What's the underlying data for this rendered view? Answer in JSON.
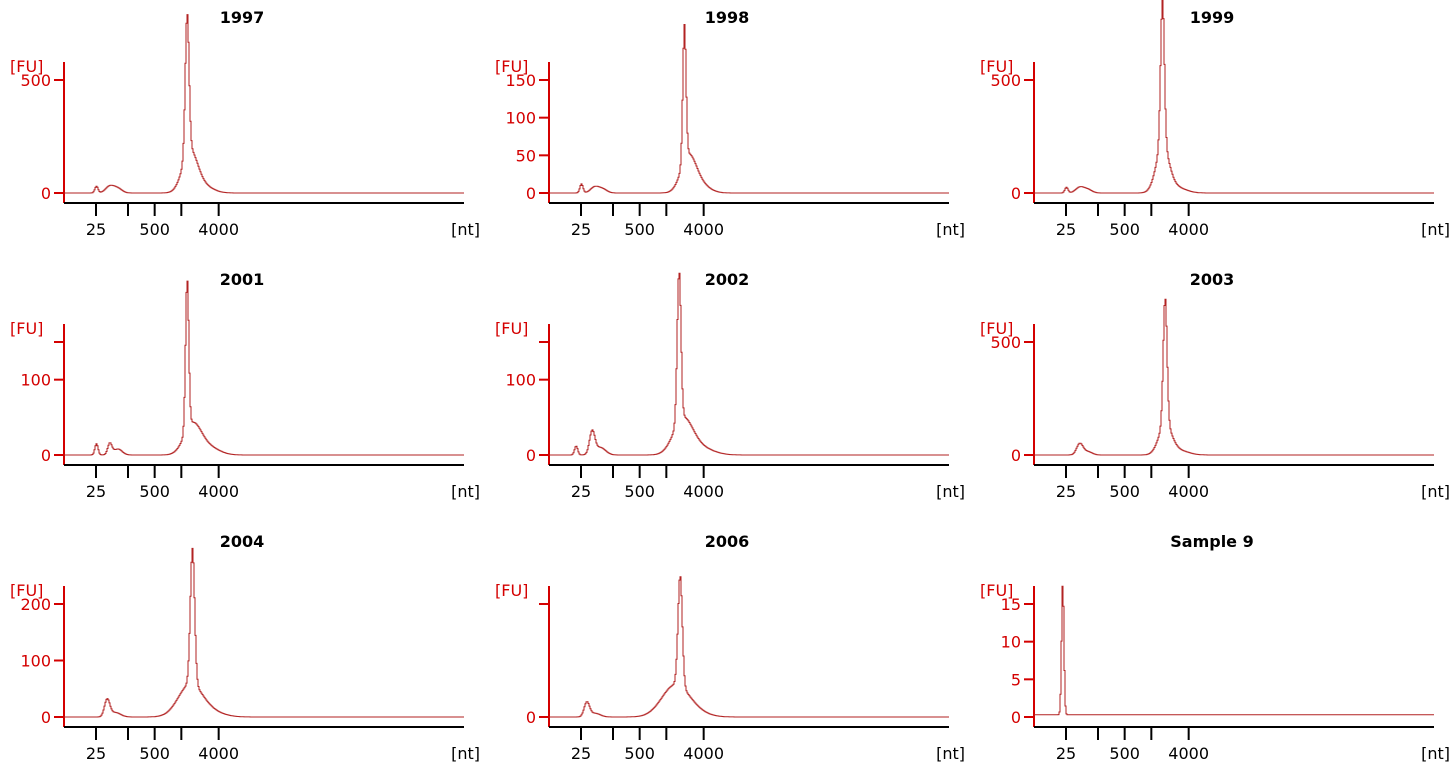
{
  "colors": {
    "axis_y": "#d40000",
    "axis_x": "#000000",
    "trace": "#b22222"
  },
  "chart_data": [
    {
      "type": "line",
      "title": "1997",
      "ylabel": "[FU]",
      "xlabel": "[nt]",
      "ylim": [
        -50,
        720
      ],
      "yticks": [
        0,
        500
      ],
      "ytick_labels": [
        "0",
        "500"
      ],
      "xlim": [
        20,
        95
      ],
      "xtick_values": [
        26,
        32,
        37,
        42,
        49
      ],
      "xtick_labels": [
        "25",
        "",
        "500",
        "",
        "4000"
      ],
      "peaks": [
        {
          "x": 26,
          "y": 30,
          "w": 0.3
        },
        {
          "x": 28.5,
          "y": 30,
          "w": 0.8
        },
        {
          "x": 30,
          "y": 20,
          "w": 0.8
        },
        {
          "x": 43,
          "y": 620,
          "w": 0.35
        },
        {
          "x": 43.5,
          "y": 180,
          "w": 1.4
        },
        {
          "x": 46,
          "y": 30,
          "w": 1.8
        }
      ]
    },
    {
      "type": "line",
      "title": "1998",
      "ylabel": "[FU]",
      "xlabel": "[nt]",
      "ylim": [
        -8,
        205
      ],
      "yticks": [
        0,
        50,
        100,
        150
      ],
      "ytick_labels": [
        "0",
        "50",
        "100",
        "150"
      ],
      "xlim": [
        20,
        95
      ],
      "xtick_values": [
        26,
        32,
        37,
        42,
        49
      ],
      "xtick_labels": [
        "25",
        "",
        "500",
        "",
        "4000"
      ],
      "peaks": [
        {
          "x": 26,
          "y": 12,
          "w": 0.3
        },
        {
          "x": 28.5,
          "y": 8,
          "w": 0.8
        },
        {
          "x": 30,
          "y": 5,
          "w": 0.8
        },
        {
          "x": 45.3,
          "y": 180,
          "w": 0.3
        },
        {
          "x": 46,
          "y": 45,
          "w": 1.4
        },
        {
          "x": 48,
          "y": 12,
          "w": 1.8
        }
      ]
    },
    {
      "type": "line",
      "title": "1999",
      "ylabel": "[FU]",
      "xlabel": "[nt]",
      "ylim": [
        -50,
        720
      ],
      "yticks": [
        0,
        500
      ],
      "ytick_labels": [
        "0",
        "500"
      ],
      "xlim": [
        20,
        95
      ],
      "xtick_values": [
        26,
        32,
        37,
        42,
        49
      ],
      "xtick_labels": [
        "25",
        "",
        "500",
        "",
        "4000"
      ],
      "peaks": [
        {
          "x": 26,
          "y": 25,
          "w": 0.3
        },
        {
          "x": 28.5,
          "y": 25,
          "w": 0.8
        },
        {
          "x": 30,
          "y": 15,
          "w": 0.8
        },
        {
          "x": 44,
          "y": 650,
          "w": 0.35
        },
        {
          "x": 44,
          "y": 200,
          "w": 1.2
        },
        {
          "x": 46.5,
          "y": 25,
          "w": 1.8
        }
      ]
    },
    {
      "type": "line",
      "title": "2001",
      "ylabel": "[FU]",
      "xlabel": "[nt]",
      "ylim": [
        -8,
        210
      ],
      "yticks": [
        0,
        100,
        150
      ],
      "ytick_labels": [
        "0",
        "100",
        ""
      ],
      "xlim": [
        20,
        95
      ],
      "xtick_values": [
        26,
        32,
        37,
        42,
        49
      ],
      "xtick_labels": [
        "25",
        "",
        "500",
        "",
        "4000"
      ],
      "peaks": [
        {
          "x": 26,
          "y": 15,
          "w": 0.3
        },
        {
          "x": 28.5,
          "y": 15,
          "w": 0.4
        },
        {
          "x": 30,
          "y": 8,
          "w": 0.8
        },
        {
          "x": 43,
          "y": 200,
          "w": 0.3
        },
        {
          "x": 44,
          "y": 40,
          "w": 1.6
        },
        {
          "x": 47,
          "y": 10,
          "w": 2.0
        }
      ]
    },
    {
      "type": "line",
      "title": "2002",
      "ylabel": "[FU]",
      "xlabel": "[nt]",
      "ylim": [
        -8,
        210
      ],
      "yticks": [
        0,
        100,
        150
      ],
      "ytick_labels": [
        "0",
        "100",
        ""
      ],
      "xlim": [
        20,
        95
      ],
      "xtick_values": [
        26,
        32,
        37,
        42,
        49
      ],
      "xtick_labels": [
        "25",
        "",
        "500",
        "",
        "4000"
      ],
      "peaks": [
        {
          "x": 25,
          "y": 12,
          "w": 0.3
        },
        {
          "x": 28,
          "y": 30,
          "w": 0.5
        },
        {
          "x": 29.5,
          "y": 10,
          "w": 1.0
        },
        {
          "x": 44.3,
          "y": 200,
          "w": 0.35
        },
        {
          "x": 45,
          "y": 45,
          "w": 1.8
        },
        {
          "x": 48,
          "y": 10,
          "w": 2.5
        }
      ]
    },
    {
      "type": "line",
      "title": "2003",
      "ylabel": "[FU]",
      "xlabel": "[nt]",
      "ylim": [
        -40,
        660
      ],
      "yticks": [
        0,
        500
      ],
      "ytick_labels": [
        "0",
        "500"
      ],
      "xlim": [
        20,
        95
      ],
      "xtick_values": [
        26,
        32,
        37,
        42,
        49
      ],
      "xtick_labels": [
        "25",
        "",
        "500",
        "",
        "4000"
      ],
      "peaks": [
        {
          "x": 28.5,
          "y": 50,
          "w": 0.6
        },
        {
          "x": 30,
          "y": 15,
          "w": 0.8
        },
        {
          "x": 44.5,
          "y": 560,
          "w": 0.35
        },
        {
          "x": 44.5,
          "y": 130,
          "w": 1.2
        },
        {
          "x": 47,
          "y": 20,
          "w": 1.8
        }
      ]
    },
    {
      "type": "line",
      "title": "2004",
      "ylabel": "[FU]",
      "xlabel": "[nt]",
      "ylim": [
        -10,
        270
      ],
      "yticks": [
        0,
        100,
        200
      ],
      "ytick_labels": [
        "0",
        "100",
        "200"
      ],
      "xlim": [
        20,
        95
      ],
      "xtick_values": [
        26,
        32,
        37,
        42,
        49
      ],
      "xtick_labels": [
        "25",
        "",
        "500",
        "",
        "4000"
      ],
      "peaks": [
        {
          "x": 28,
          "y": 30,
          "w": 0.5
        },
        {
          "x": 29.5,
          "y": 8,
          "w": 1.0
        },
        {
          "x": 44,
          "y": 240,
          "w": 0.4
        },
        {
          "x": 43.5,
          "y": 55,
          "w": 2.2
        },
        {
          "x": 47,
          "y": 10,
          "w": 2.5
        }
      ]
    },
    {
      "type": "line",
      "title": "2006",
      "ylabel": "[FU]",
      "xlabel": "[nt]",
      "ylim": [
        -10,
        270
      ],
      "yticks": [
        0,
        240
      ],
      "ytick_labels": [
        "0",
        ""
      ],
      "xlim": [
        20,
        95
      ],
      "xtick_values": [
        26,
        32,
        37,
        42,
        49
      ],
      "xtick_labels": [
        "25",
        "",
        "500",
        "",
        "4000"
      ],
      "peaks": [
        {
          "x": 27,
          "y": 30,
          "w": 0.5
        },
        {
          "x": 28.5,
          "y": 8,
          "w": 1.0
        },
        {
          "x": 44.5,
          "y": 235,
          "w": 0.4
        },
        {
          "x": 43.5,
          "y": 65,
          "w": 2.5
        },
        {
          "x": 47,
          "y": 10,
          "w": 2.5
        }
      ]
    },
    {
      "type": "line",
      "title": "Sample 9",
      "ylabel": "[FU]",
      "xlabel": "[nt]",
      "ylim": [
        -1,
        19
      ],
      "yticks": [
        0,
        5,
        10,
        15
      ],
      "ytick_labels": [
        "0",
        "5",
        "10",
        "15"
      ],
      "xlim": [
        20,
        95
      ],
      "xtick_values": [
        26,
        32,
        37,
        42,
        49
      ],
      "xtick_labels": [
        "25",
        "",
        "500",
        "",
        "4000"
      ],
      "baseline": 0.3,
      "peaks": [
        {
          "x": 25.3,
          "y": 17.5,
          "w": 0.22
        }
      ]
    }
  ]
}
